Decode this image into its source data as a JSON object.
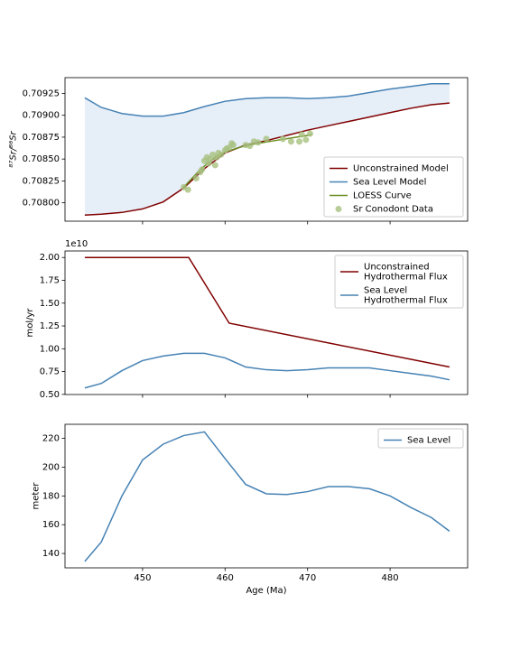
{
  "chart_data": [
    {
      "type": "line",
      "ylabel": "⁸⁷Sr/⁸⁶Sr",
      "xlim": [
        440.6,
        489.4
      ],
      "xticks": [
        450,
        460,
        470,
        480
      ],
      "ylim": [
        0.70779,
        0.70943
      ],
      "yticks": [
        {
          "value": 0.708,
          "label": "0.70800"
        },
        {
          "value": 0.70825,
          "label": "0.70825"
        },
        {
          "value": 0.7085,
          "label": "0.70850"
        },
        {
          "value": 0.70875,
          "label": "0.70875"
        },
        {
          "value": 0.709,
          "label": "0.70900"
        },
        {
          "value": 0.70925,
          "label": "0.70925"
        }
      ],
      "legend": "lower right",
      "fill_color": "#e6eef8",
      "series": [
        {
          "name": "Unconstrained Model",
          "color": "#800000",
          "x": [
            443,
            445,
            447.5,
            450,
            452.5,
            455,
            457.5,
            460,
            462.5,
            465,
            467.5,
            470,
            472.5,
            475,
            477.5,
            480,
            482.5,
            485,
            487.2
          ],
          "values": [
            0.70786,
            0.70787,
            0.70789,
            0.70793,
            0.70801,
            0.70817,
            0.70839,
            0.70857,
            0.70866,
            0.70871,
            0.70877,
            0.70883,
            0.70888,
            0.70893,
            0.70898,
            0.70903,
            0.70908,
            0.70912,
            0.70914
          ]
        },
        {
          "name": "Sea Level Model",
          "color": "#4682b4",
          "x": [
            443,
            445,
            447.5,
            450,
            452.5,
            455,
            457.5,
            460,
            462.5,
            465,
            467.5,
            470,
            472.5,
            475,
            477.5,
            480,
            482.5,
            485,
            487.2
          ],
          "values": [
            0.7092,
            0.70909,
            0.70902,
            0.70899,
            0.70899,
            0.70903,
            0.7091,
            0.70916,
            0.70919,
            0.7092,
            0.7092,
            0.70919,
            0.7092,
            0.70922,
            0.70926,
            0.7093,
            0.70933,
            0.70936,
            0.70936
          ]
        },
        {
          "name": "LOESS Curve",
          "color": "#6b8e23",
          "x": [
            455,
            456,
            457,
            458,
            459,
            460,
            462,
            464,
            466,
            468,
            470,
            470.5
          ],
          "values": [
            0.70818,
            0.70828,
            0.70838,
            0.70846,
            0.70853,
            0.70858,
            0.70864,
            0.70868,
            0.70871,
            0.70874,
            0.70877,
            0.70878
          ]
        },
        {
          "name": "Sr Conodont Data",
          "color": "#a8c080",
          "type": "scatter",
          "x": [
            455,
            455.5,
            456.5,
            457,
            457.2,
            457.5,
            457.8,
            458,
            458.2,
            458.5,
            458.8,
            459,
            459.2,
            459.5,
            460,
            460.2,
            460.5,
            460.8,
            461,
            462.5,
            463,
            463.5,
            464,
            465,
            467,
            468,
            469,
            469.3,
            469.8,
            470.3
          ],
          "values": [
            0.70818,
            0.70815,
            0.70828,
            0.70835,
            0.70838,
            0.70848,
            0.70852,
            0.70845,
            0.7085,
            0.70855,
            0.70843,
            0.70852,
            0.70857,
            0.70855,
            0.7086,
            0.70862,
            0.70863,
            0.70868,
            0.70866,
            0.70866,
            0.70865,
            0.7087,
            0.70869,
            0.70873,
            0.70873,
            0.7087,
            0.7087,
            0.70878,
            0.70872,
            0.70879
          ]
        }
      ]
    },
    {
      "type": "line",
      "ylabel": "mol/yr",
      "y_offset_label": "1e10",
      "xlim": [
        440.6,
        489.4
      ],
      "xticks": [
        450,
        460,
        470,
        480
      ],
      "ylim": [
        0.4985,
        2.0715
      ],
      "yticks": [
        {
          "value": 0.5,
          "label": "0.50"
        },
        {
          "value": 0.75,
          "label": "0.75"
        },
        {
          "value": 1,
          "label": "1.00"
        },
        {
          "value": 1.25,
          "label": "1.25"
        },
        {
          "value": 1.5,
          "label": "1.50"
        },
        {
          "value": 1.75,
          "label": "1.75"
        },
        {
          "value": 2,
          "label": "2.00"
        }
      ],
      "legend": "upper right",
      "series": [
        {
          "name": "Unconstrained\nHydrothermal Flux",
          "color": "#800000",
          "x": [
            443,
            455.6,
            460.5,
            487.2
          ],
          "values": [
            2.0,
            2.0,
            1.28,
            0.8
          ]
        },
        {
          "name": "Sea Level\nHydrothermal Flux",
          "color": "#4682b4",
          "x": [
            443,
            445,
            447.5,
            450,
            452.5,
            455,
            457.5,
            460,
            462.5,
            465,
            467.5,
            470,
            472.5,
            475,
            477.5,
            480,
            482.5,
            485,
            487.2
          ],
          "values": [
            0.57,
            0.62,
            0.76,
            0.87,
            0.92,
            0.95,
            0.95,
            0.9,
            0.8,
            0.77,
            0.76,
            0.77,
            0.79,
            0.79,
            0.79,
            0.76,
            0.73,
            0.7,
            0.66
          ]
        }
      ]
    },
    {
      "type": "line",
      "ylabel": "meter",
      "xlabel": "Age (Ma)",
      "xlim": [
        440.6,
        489.4
      ],
      "xticks": [
        450,
        460,
        470,
        480
      ],
      "ylim": [
        130,
        229.8
      ],
      "yticks": [
        140,
        160,
        180,
        200,
        220
      ],
      "legend": "upper right",
      "series": [
        {
          "name": "Sea Level",
          "color": "#4682b4",
          "x": [
            443,
            445,
            447.5,
            450,
            452.5,
            455,
            457.5,
            460,
            462.5,
            465,
            467.5,
            470,
            472.5,
            475,
            477.5,
            480,
            482.5,
            485,
            487.2
          ],
          "values": [
            134.5,
            148,
            180,
            205,
            216,
            222,
            224.5,
            206,
            188,
            181.5,
            181,
            183,
            186.5,
            186.5,
            185,
            180,
            172,
            165,
            155.5
          ]
        }
      ]
    }
  ]
}
